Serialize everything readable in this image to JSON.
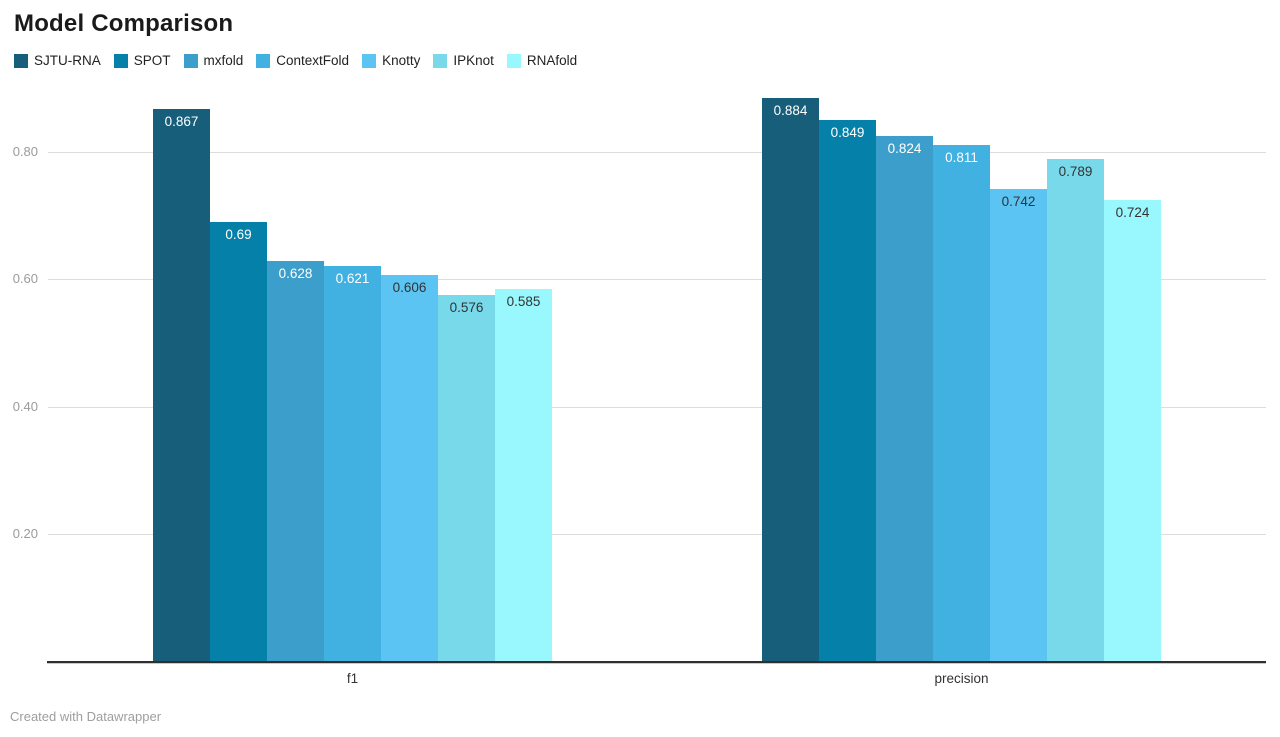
{
  "page": {
    "title": "Model Comparison",
    "footer": "Created with Datawrapper"
  },
  "chart_data": {
    "type": "bar",
    "title": "Model Comparison",
    "categories": [
      "f1",
      "precision"
    ],
    "series": [
      {
        "name": "SJTU-RNA",
        "color": "#175E7A",
        "label_color": "#ffffff",
        "values": [
          0.867,
          0.884
        ]
      },
      {
        "name": "SPOT",
        "color": "#0580A8",
        "label_color": "#ffffff",
        "values": [
          0.69,
          0.849
        ]
      },
      {
        "name": "mxfold",
        "color": "#3C9FCB",
        "label_color": "#ffffff",
        "values": [
          0.628,
          0.824
        ]
      },
      {
        "name": "ContextFold",
        "color": "#41B1E2",
        "label_color": "#ffffff",
        "values": [
          0.621,
          0.811
        ]
      },
      {
        "name": "Knotty",
        "color": "#5BC4F3",
        "label_color": "#333333",
        "values": [
          0.606,
          0.742
        ]
      },
      {
        "name": "IPKnot",
        "color": "#77D9EA",
        "label_color": "#333333",
        "values": [
          0.576,
          0.789
        ]
      },
      {
        "name": "RNAfold",
        "color": "#99F8FE",
        "label_color": "#333333",
        "values": [
          0.585,
          0.724
        ]
      }
    ],
    "xlabel": "",
    "ylabel": "",
    "ylim": [
      0,
      0.9
    ],
    "y_axis": {
      "tick_labels": [
        "0.20",
        "0.40",
        "0.60",
        "0.80"
      ],
      "tick_values": [
        0.2,
        0.4,
        0.6,
        0.8
      ],
      "grid": true
    },
    "legend_position": "top",
    "value_labels_shown": true
  },
  "colors": {
    "grid_line": "#dddddd",
    "axis_line": "#2f2f2f",
    "tick_text": "#9b9b9b",
    "title_text": "#1a1a1a",
    "footer_text": "#9e9e9e"
  }
}
